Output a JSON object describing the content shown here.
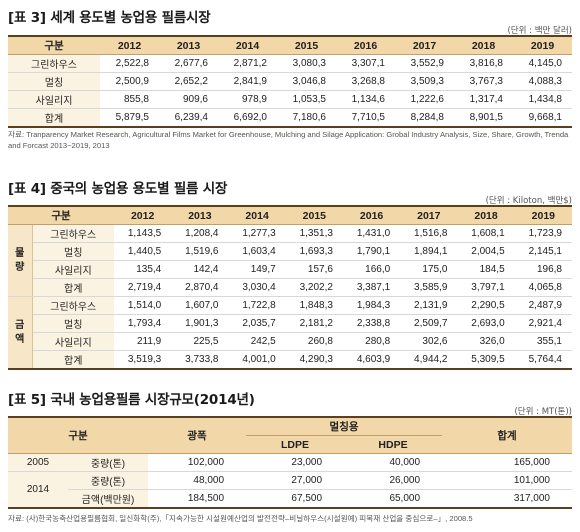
{
  "table3": {
    "title": "[표 3] 세계 용도별 농업용 필름시장",
    "unit": "(단위 : 백만 달러)",
    "header_label": "구분",
    "years": [
      "2012",
      "2013",
      "2014",
      "2015",
      "2016",
      "2017",
      "2018",
      "2019"
    ],
    "rows": [
      {
        "label": "그린하우스",
        "values": [
          "2,522,8",
          "2,677,6",
          "2,871,2",
          "3,080,3",
          "3,307,1",
          "3,552,9",
          "3,816,8",
          "4,145,0"
        ]
      },
      {
        "label": "멀칭",
        "values": [
          "2,500,9",
          "2,652,2",
          "2,841,9",
          "3,046,8",
          "3,268,8",
          "3,509,3",
          "3,767,3",
          "4,088,3"
        ]
      },
      {
        "label": "사일리지",
        "values": [
          "855,8",
          "909,6",
          "978,9",
          "1,053,5",
          "1,134,6",
          "1,222,6",
          "1,317,4",
          "1,434,8"
        ]
      },
      {
        "label": "합계",
        "values": [
          "5,879,5",
          "6,239,4",
          "6,692,0",
          "7,180,6",
          "7,710,5",
          "8,284,8",
          "8,901,5",
          "9,668,1"
        ]
      }
    ],
    "source": "자료: Tranparency Market Research, Agricultural Films Market for Greenhouse, Mulching and Silage Application: Grobal Industry Analysis, Size, Share, Growth, Trenda and Forcast 2013~2019, 2013"
  },
  "table4": {
    "title": "[표 4] 중국의 농업용 용도별 필름 시장",
    "unit": "(단위 : Kiloton, 백만$)",
    "header_label": "구분",
    "years": [
      "2012",
      "2013",
      "2014",
      "2015",
      "2016",
      "2017",
      "2018",
      "2019"
    ],
    "groups": [
      {
        "name": "물량",
        "rows": [
          {
            "label": "그린하우스",
            "values": [
              "1,143,5",
              "1,208,4",
              "1,277,3",
              "1,351,3",
              "1,431,0",
              "1,516,8",
              "1,608,1",
              "1,723,9"
            ]
          },
          {
            "label": "멀칭",
            "values": [
              "1,440,5",
              "1,519,6",
              "1,603,4",
              "1,693,3",
              "1,790,1",
              "1,894,1",
              "2,004,5",
              "2,145,1"
            ]
          },
          {
            "label": "사일리지",
            "values": [
              "135,4",
              "142,4",
              "149,7",
              "157,6",
              "166,0",
              "175,0",
              "184,5",
              "196,8"
            ]
          },
          {
            "label": "합계",
            "values": [
              "2,719,4",
              "2,870,4",
              "3,030,4",
              "3,202,2",
              "3,387,1",
              "3,585,9",
              "3,797,1",
              "4,065,8"
            ]
          }
        ]
      },
      {
        "name": "금액",
        "rows": [
          {
            "label": "그린하우스",
            "values": [
              "1,514,0",
              "1,607,0",
              "1,722,8",
              "1,848,3",
              "1,984,3",
              "2,131,9",
              "2,290,5",
              "2,487,9"
            ]
          },
          {
            "label": "멀칭",
            "values": [
              "1,793,4",
              "1,901,3",
              "2,035,7",
              "2,181,2",
              "2,338,8",
              "2,509,7",
              "2,693,0",
              "2,921,4"
            ]
          },
          {
            "label": "사일리지",
            "values": [
              "211,9",
              "225,5",
              "242,5",
              "260,8",
              "280,8",
              "302,6",
              "326,0",
              "355,1"
            ]
          },
          {
            "label": "합계",
            "values": [
              "3,519,3",
              "3,733,8",
              "4,001,0",
              "4,290,3",
              "4,603,9",
              "4,944,2",
              "5,309,5",
              "5,764,4"
            ]
          }
        ]
      }
    ]
  },
  "table5": {
    "title": "[표 5] 국내 농업용필름 시장규모(2014년)",
    "unit": "(단위 : MT(톤))",
    "header": {
      "category": "구분",
      "gwangpi": "광폭",
      "mulching": "멀칭용",
      "ldpe": "LDPE",
      "hdpe": "HDPE",
      "total": "합계"
    },
    "rows": [
      {
        "year": "2005",
        "item": "중량(톤)",
        "gwangpi": "102,000",
        "ldpe": "23,000",
        "hdpe": "40,000",
        "total": "165,000"
      },
      {
        "year": "2014",
        "item": "중량(톤)",
        "gwangpi": "48,000",
        "ldpe": "27,000",
        "hdpe": "26,000",
        "total": "101,000"
      },
      {
        "year": "",
        "item": "금액(백만원)",
        "gwangpi": "184,500",
        "ldpe": "67,500",
        "hdpe": "65,000",
        "total": "317,000"
      }
    ],
    "source": "자료: (사)한국농축산업용필름협회, 일신화학(주),「지속가능한 시설원예산업의 발전전략–비닐하우스(시설원예) 피복재 산업을 중심으로–」, 2008.5"
  }
}
